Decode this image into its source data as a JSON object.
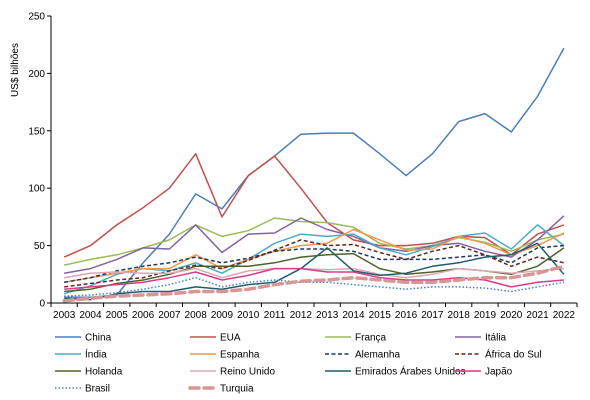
{
  "chart_data": {
    "type": "line",
    "ylabel": "US$ bilhões",
    "ylim": [
      0,
      250
    ],
    "yticks": [
      0,
      50,
      100,
      150,
      200,
      250
    ],
    "grid": false,
    "legend_position": "bottom",
    "x": [
      "2003",
      "2004",
      "2005",
      "2006",
      "2007",
      "2008",
      "2009",
      "2010",
      "2011",
      "2012",
      "2013",
      "2014",
      "2015",
      "2016",
      "2017",
      "2018",
      "2019",
      "2020",
      "2021",
      "2022"
    ],
    "series": [
      {
        "name": "China",
        "color": "#4a7ebb",
        "dash": "solid",
        "width": 1.5,
        "values": [
          5,
          5,
          7,
          35,
          60,
          95,
          82,
          111,
          128,
          147,
          148,
          148,
          130,
          111,
          130,
          158,
          165,
          149,
          180,
          222
        ]
      },
      {
        "name": "EUA",
        "color": "#c0504d",
        "dash": "solid",
        "width": 1.5,
        "values": [
          40,
          50,
          68,
          83,
          100,
          130,
          75,
          111,
          128,
          100,
          70,
          55,
          50,
          50,
          52,
          58,
          57,
          42,
          60,
          68
        ]
      },
      {
        "name": "França",
        "color": "#9bbb59",
        "dash": "solid",
        "width": 1.5,
        "values": [
          33,
          38,
          42,
          48,
          55,
          68,
          58,
          63,
          74,
          71,
          70,
          66,
          52,
          47,
          50,
          57,
          53,
          45,
          55,
          60
        ]
      },
      {
        "name": "Itália",
        "color": "#8064a2",
        "dash": "solid",
        "width": 1.5,
        "values": [
          26,
          30,
          38,
          48,
          47,
          68,
          44,
          60,
          61,
          74,
          64,
          58,
          48,
          45,
          50,
          52,
          45,
          40,
          55,
          76
        ]
      },
      {
        "name": "Índia",
        "color": "#4bacc6",
        "dash": "solid",
        "width": 1.5,
        "values": [
          8,
          15,
          25,
          30,
          28,
          35,
          26,
          38,
          52,
          60,
          58,
          60,
          48,
          42,
          49,
          58,
          61,
          47,
          68,
          50
        ]
      },
      {
        "name": "Espanha",
        "color": "#f79646",
        "dash": "solid",
        "width": 1.5,
        "values": [
          18,
          22,
          26,
          30,
          30,
          42,
          30,
          38,
          45,
          50,
          52,
          64,
          55,
          46,
          47,
          58,
          52,
          42,
          50,
          61
        ]
      },
      {
        "name": "Alemanha",
        "color": "#1f3864",
        "dash": "dashed",
        "width": 1.5,
        "values": [
          18,
          22,
          28,
          32,
          35,
          40,
          35,
          39,
          45,
          47,
          47,
          45,
          38,
          38,
          38,
          40,
          42,
          35,
          48,
          50
        ]
      },
      {
        "name": "África do Sul",
        "color": "#632523",
        "dash": "dashed",
        "width": 1.5,
        "values": [
          14,
          17,
          20,
          22,
          28,
          33,
          30,
          37,
          46,
          55,
          50,
          51,
          44,
          38,
          45,
          50,
          42,
          32,
          40,
          35
        ]
      },
      {
        "name": "Holanda",
        "color": "#4f6228",
        "dash": "solid",
        "width": 1.5,
        "values": [
          10,
          12,
          17,
          20,
          25,
          32,
          32,
          32,
          35,
          40,
          42,
          43,
          30,
          25,
          27,
          30,
          28,
          25,
          32,
          48
        ]
      },
      {
        "name": "Reino Unido",
        "color": "#d9a8b4",
        "dash": "solid",
        "width": 1.5,
        "values": [
          22,
          26,
          27,
          26,
          26,
          30,
          22,
          28,
          30,
          30,
          29,
          30,
          25,
          22,
          25,
          30,
          28,
          26,
          28,
          30
        ]
      },
      {
        "name": "Emirados Árabes Unidos",
        "color": "#1f5d6e",
        "dash": "solid",
        "width": 1.5,
        "values": [
          4,
          3,
          8,
          10,
          10,
          14,
          12,
          16,
          18,
          30,
          48,
          28,
          24,
          26,
          32,
          35,
          40,
          42,
          52,
          25
        ]
      },
      {
        "name": "Japão",
        "color": "#d63c8c",
        "dash": "solid",
        "width": 1.5,
        "values": [
          12,
          14,
          16,
          18,
          22,
          27,
          20,
          24,
          30,
          30,
          27,
          27,
          22,
          20,
          20,
          22,
          20,
          14,
          18,
          20
        ]
      },
      {
        "name": "Brasil",
        "color": "#4a7ebb",
        "dash": "dotted",
        "width": 1.5,
        "values": [
          6,
          7,
          9,
          12,
          16,
          22,
          14,
          18,
          20,
          18,
          18,
          16,
          14,
          12,
          14,
          14,
          13,
          10,
          14,
          18
        ]
      },
      {
        "name": "Turquia",
        "color": "#d99694",
        "dash": "dashed",
        "width": 3.5,
        "values": [
          2,
          4,
          6,
          7,
          8,
          10,
          10,
          12,
          16,
          19,
          20,
          22,
          20,
          18,
          18,
          20,
          22,
          22,
          26,
          32
        ]
      }
    ]
  }
}
